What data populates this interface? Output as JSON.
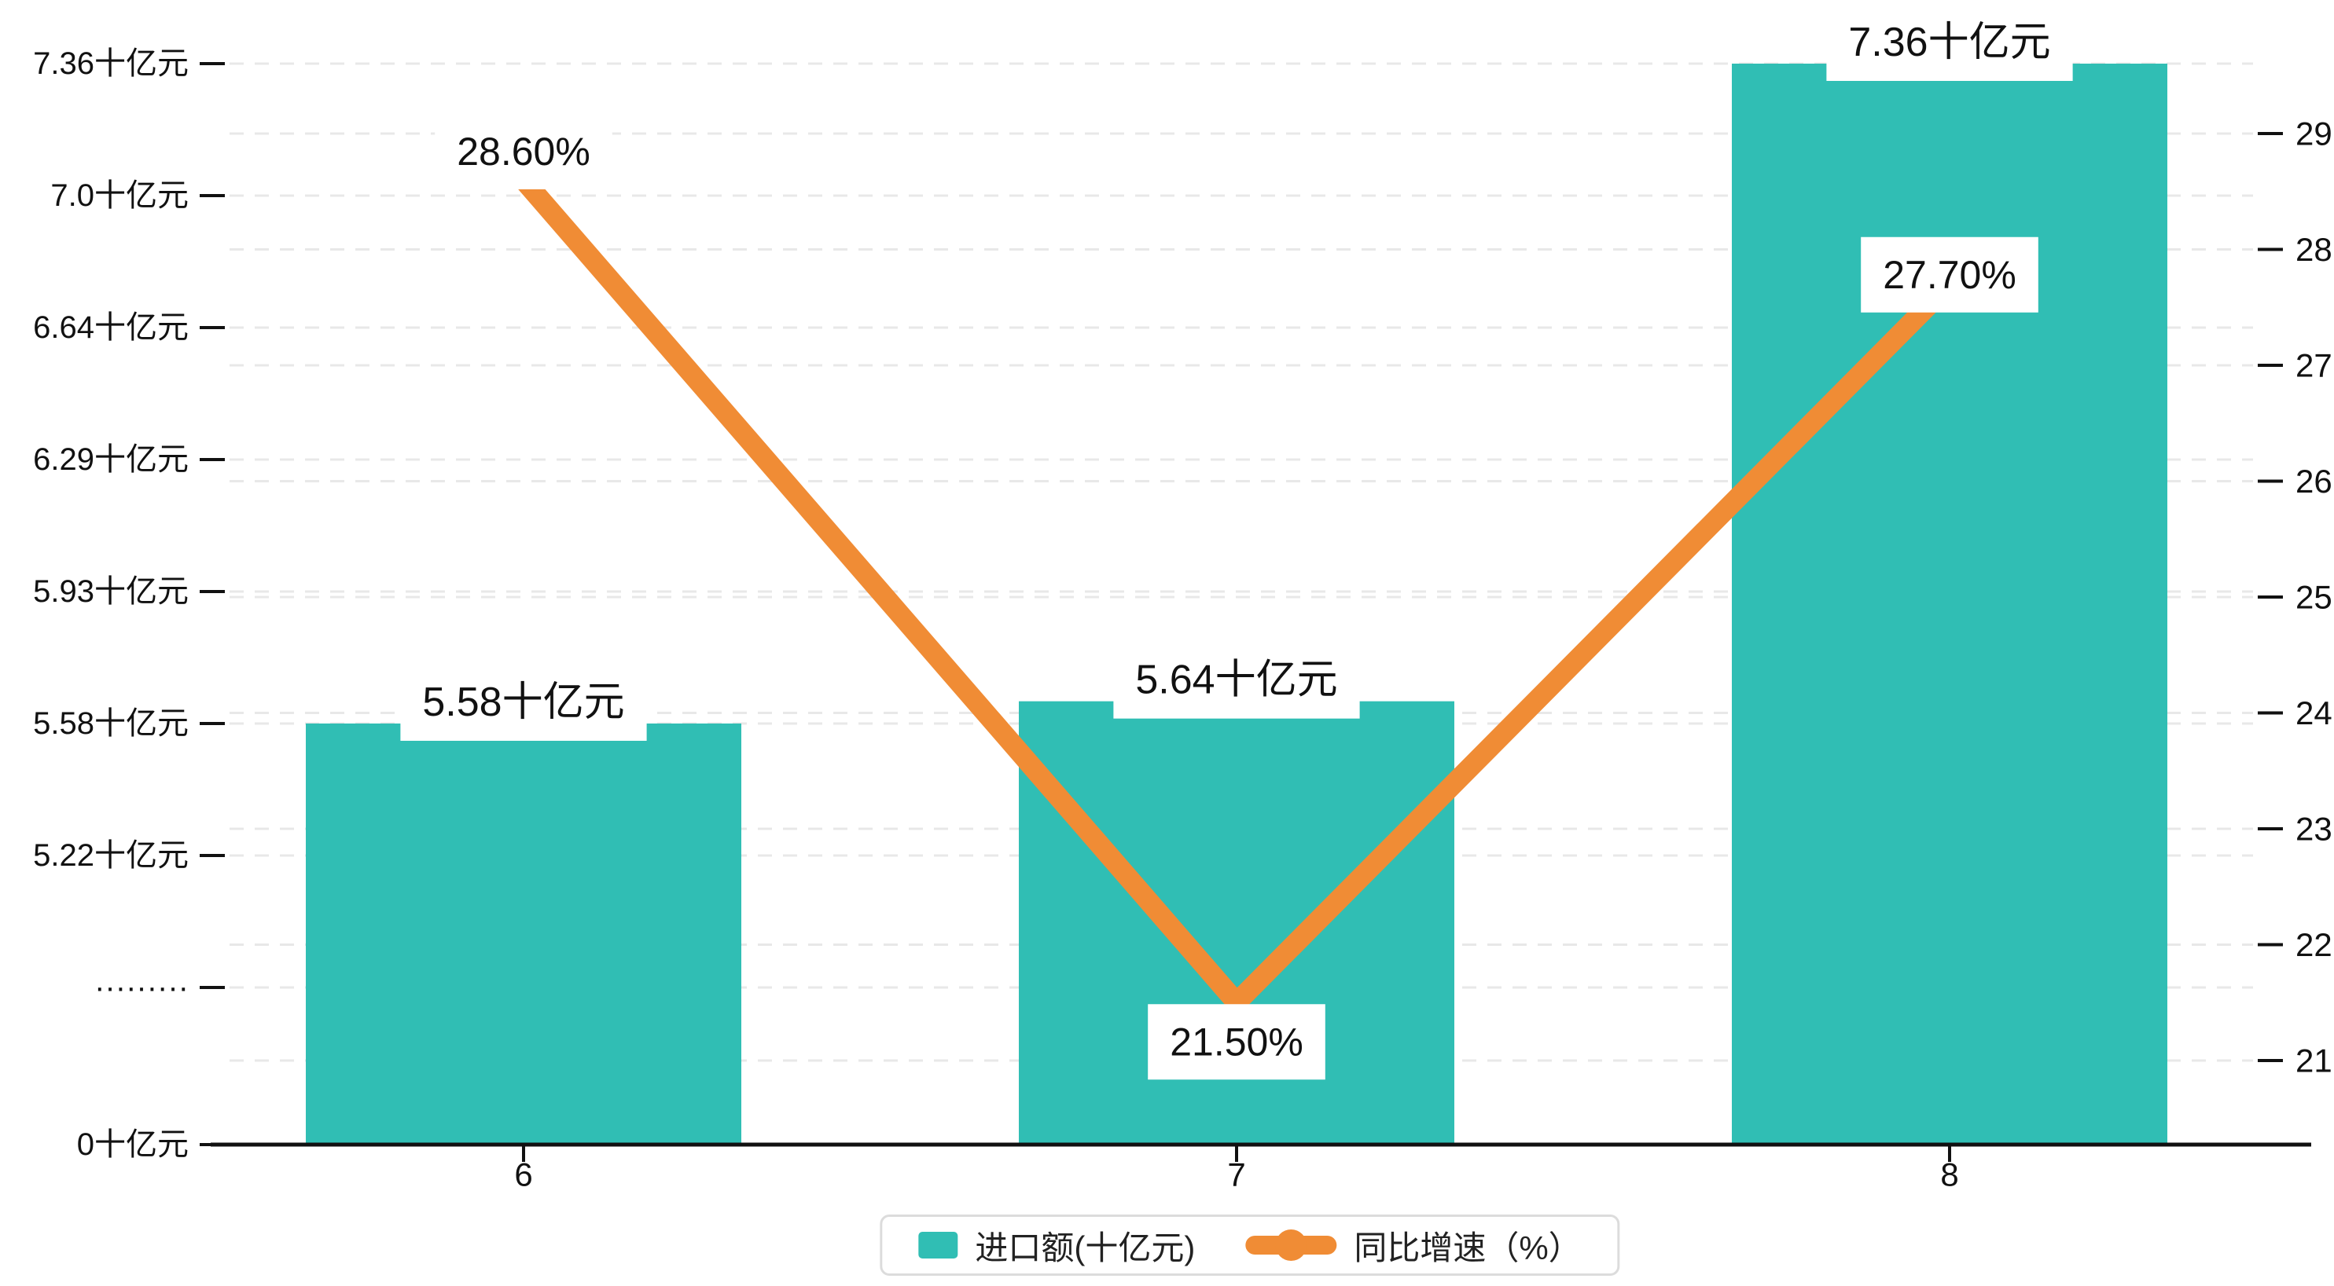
{
  "chart_data": {
    "type": "bar+line dual-axis",
    "categories": [
      "6",
      "7",
      "8"
    ],
    "series": [
      {
        "name": "进口额(十亿元)",
        "type": "bar",
        "values": [
          5.58,
          5.64,
          7.36
        ],
        "labels": [
          "5.58十亿元",
          "5.64十亿元",
          "7.36十亿元"
        ],
        "color": "#30beb4",
        "axis": "left"
      },
      {
        "name": "同比增速（%）",
        "type": "line",
        "values": [
          28.6,
          21.5,
          27.7
        ],
        "labels": [
          "28.60%",
          "21.50%",
          "27.70%"
        ],
        "color": "#f08c35",
        "axis": "right"
      }
    ],
    "left_axis": {
      "tick_labels": [
        "7.36十亿元",
        "7.0十亿元",
        "6.64十亿元",
        "6.29十亿元",
        "5.93十亿元",
        "5.58十亿元",
        "5.22十亿元",
        "·········",
        "0十亿元"
      ],
      "tick_values": [
        7.36,
        7.0,
        6.64,
        6.29,
        5.93,
        5.58,
        5.22,
        null,
        0
      ],
      "broken_axis": true,
      "unit": "十亿元"
    },
    "right_axis": {
      "tick_labels": [
        "29",
        "28",
        "27",
        "26",
        "25",
        "24",
        "23",
        "22",
        "21"
      ],
      "tick_values": [
        29,
        28,
        27,
        26,
        25,
        24,
        23,
        22,
        21
      ],
      "unit": "%"
    },
    "grid": {
      "dashed": true,
      "color": "#e8e8e8"
    },
    "legend_position": "bottom-center"
  },
  "legend": {
    "items": [
      {
        "label": "进口额(十亿元)",
        "marker": "bar-swatch",
        "color": "#30beb4"
      },
      {
        "label": "同比增速（%）",
        "marker": "line-dot-swatch",
        "color": "#f08c35"
      }
    ]
  },
  "colors": {
    "bar": "#30beb4",
    "line": "#f08c35",
    "axis": "#111111",
    "grid_major": "#e8e8e8",
    "label_text": "#111111",
    "label_bg": "#ffffff",
    "legend_border": "#dcdcdc"
  }
}
